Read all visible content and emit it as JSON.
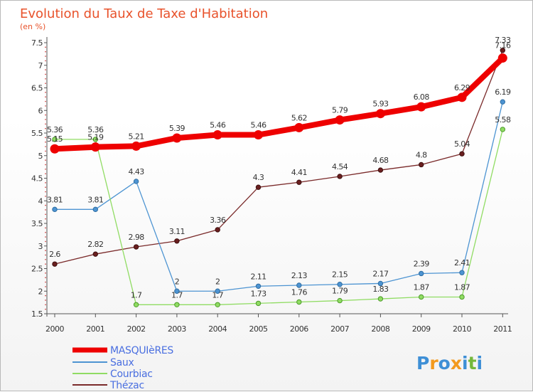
{
  "chart_data": {
    "type": "line",
    "title": "Evolution du Taux de Taxe d'Habitation",
    "subtitle": "(en %)",
    "x": [
      "2000",
      "2001",
      "2002",
      "2003",
      "2004",
      "2005",
      "2006",
      "2007",
      "2008",
      "2009",
      "2010",
      "2011"
    ],
    "ylim": [
      1.5,
      7.5
    ],
    "yticks": [
      "1.5",
      "2",
      "2.5",
      "3",
      "3.5",
      "4",
      "4.5",
      "5",
      "5.5",
      "6",
      "6.5",
      "7",
      "7.5"
    ],
    "series": [
      {
        "name": "MASQUIèRES",
        "color": "#ee0000",
        "values": [
          5.15,
          5.19,
          5.21,
          5.39,
          5.46,
          5.46,
          5.62,
          5.79,
          5.93,
          6.08,
          6.29,
          7.16
        ],
        "labels": [
          "5.15",
          "5.19",
          "5.21",
          "5.39",
          "5.46",
          "5.46",
          "5.62",
          "5.79",
          "5.93",
          "6.08",
          "6.29",
          "7.16"
        ]
      },
      {
        "name": "Saux",
        "color": "#4d94d2",
        "values": [
          3.81,
          3.81,
          4.43,
          2,
          2,
          2.11,
          2.13,
          2.15,
          2.17,
          2.39,
          2.41,
          6.19
        ],
        "labels": [
          "3.81",
          "3.81",
          "4.43",
          "2",
          "2",
          "2.11",
          "2.13",
          "2.15",
          "2.17",
          "2.39",
          "2.41",
          "6.19"
        ]
      },
      {
        "name": "Courbiac",
        "color": "#90dc63",
        "values": [
          5.36,
          5.36,
          1.7,
          1.7,
          1.7,
          1.73,
          1.76,
          1.79,
          1.83,
          1.87,
          1.87,
          5.58
        ],
        "labels": [
          "5.36",
          "5.36",
          "1.7",
          "1.7",
          "1.7",
          "1.73",
          "1.76",
          "1.79",
          "1.83",
          "1.87",
          "1.87",
          "5.58"
        ]
      },
      {
        "name": "Thézac",
        "color": "#7a2a2a",
        "values": [
          2.6,
          2.82,
          2.98,
          3.11,
          3.36,
          4.3,
          4.41,
          4.54,
          4.68,
          4.8,
          5.04,
          7.33
        ],
        "labels": [
          "2.6",
          "2.82",
          "2.98",
          "3.11",
          "3.36",
          "4.3",
          "4.41",
          "4.54",
          "4.68",
          "4.8",
          "5.04",
          "7.33"
        ]
      }
    ]
  },
  "logo": {
    "text": "Proxiti",
    "letters": [
      "P",
      "r",
      "o",
      "x",
      "i",
      "t",
      "i"
    ],
    "colors": [
      "#3e8fd6",
      "#f39a1e",
      "#3e8fd6",
      "#f39a1e",
      "#3e8fd6",
      "#74b83c",
      "#3e8fd6"
    ]
  }
}
